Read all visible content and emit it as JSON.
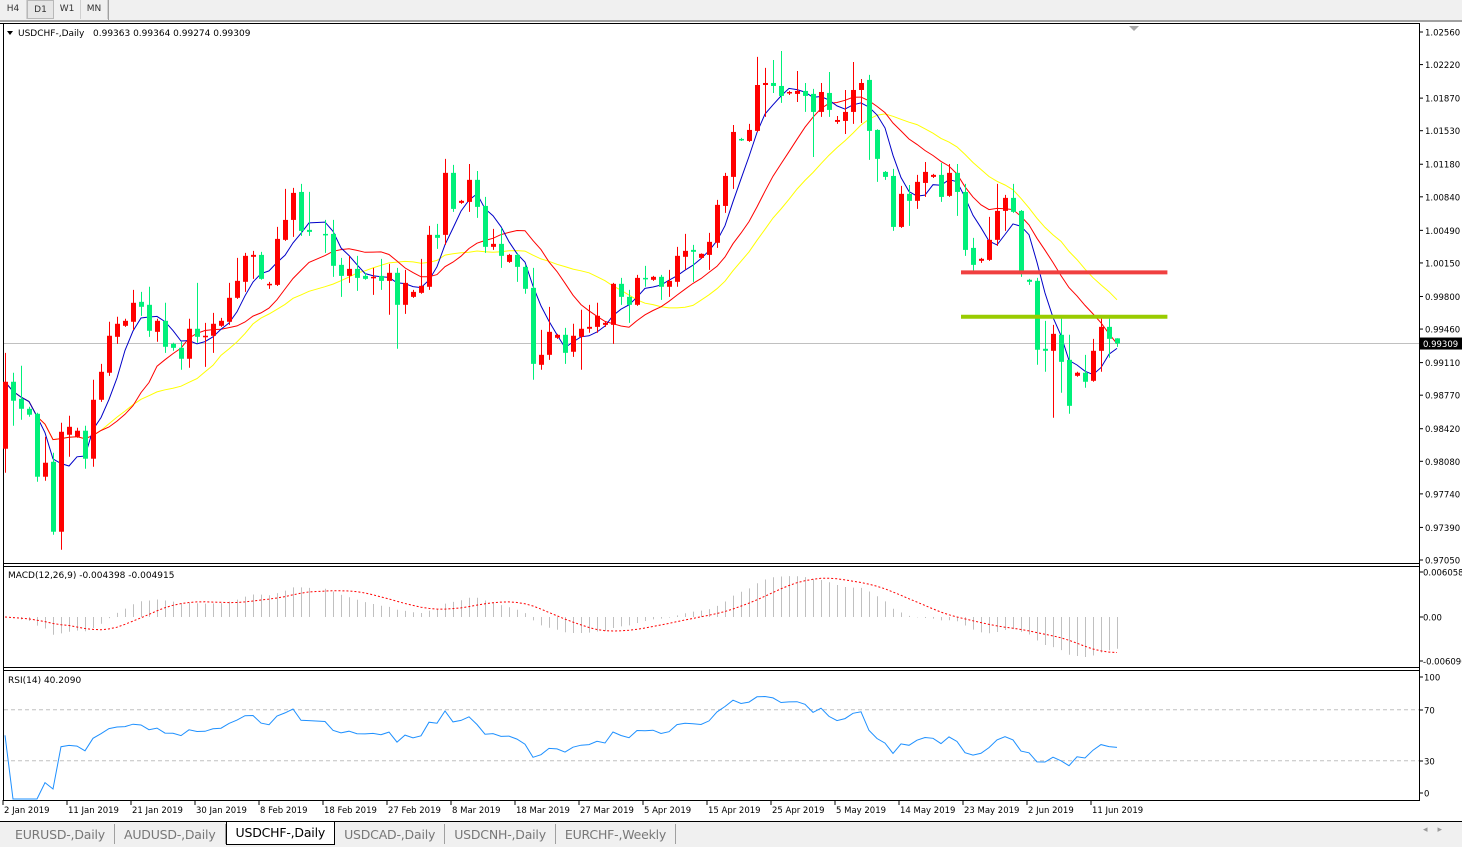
{
  "toolbar": {
    "timeframes": [
      "H4",
      "D1",
      "W1",
      "MN"
    ],
    "active": "D1"
  },
  "header": {
    "symbol": "USDCHF-,Daily",
    "ohlc": "0.99363 0.99364 0.99274 0.99309"
  },
  "price_axis": {
    "labels": [
      "1.02560",
      "1.02220",
      "1.01870",
      "1.01530",
      "1.01180",
      "1.00840",
      "1.00490",
      "1.00150",
      "0.99800",
      "0.99460",
      "0.99110",
      "0.98770",
      "0.98420",
      "0.98080",
      "0.97740",
      "0.97390",
      "0.97050"
    ],
    "current_price": "0.99309"
  },
  "macd": {
    "title": "MACD(12,26,9) -0.004398 -0.004915",
    "axis_labels": [
      "0.006058",
      "0.00",
      "-0.006096"
    ],
    "axis_values": [
      0.006058,
      0,
      -0.006096
    ]
  },
  "rsi": {
    "title": "RSI(14) 40.2090",
    "axis_labels": [
      "100",
      "70",
      "30",
      "0"
    ],
    "levels": [
      70,
      30
    ]
  },
  "date_labels": [
    "2 Jan 2019",
    "11 Jan 2019",
    "21 Jan 2019",
    "30 Jan 2019",
    "8 Feb 2019",
    "18 Feb 2019",
    "27 Feb 2019",
    "8 Mar 2019",
    "18 Mar 2019",
    "27 Mar 2019",
    "5 Apr 2019",
    "15 Apr 2019",
    "25 Apr 2019",
    "5 May 2019",
    "14 May 2019",
    "23 May 2019",
    "2 Jun 2019",
    "11 Jun 2019"
  ],
  "tabs": [
    {
      "label": "EURUSD-,Daily",
      "active": false
    },
    {
      "label": "AUDUSD-,Daily",
      "active": false
    },
    {
      "label": "USDCHF-,Daily",
      "active": true
    },
    {
      "label": "USDCAD-,Daily",
      "active": false
    },
    {
      "label": "USDCNH-,Daily",
      "active": false
    },
    {
      "label": "EURCHF-,Weekly",
      "active": false
    }
  ],
  "tab_scroll": {
    "left": "◂",
    "right": "▸"
  },
  "chart_data": {
    "type": "candlestick",
    "symbol": "USDCHF-",
    "timeframe": "Daily",
    "ylim": [
      0.9705,
      1.0256
    ],
    "grid": false,
    "colors": {
      "up": "#ff0000",
      "down": "#00f07a",
      "ma_fast": "#0000c8",
      "ma_mid": "#ff0000",
      "ma_slow": "#ffff00",
      "macd_hist": "#c0c0c0",
      "macd_signal": "#ff0000",
      "rsi": "#1e90ff",
      "bid_line": "#c0c0c0"
    },
    "horizontal_lines": [
      {
        "price": 1.00052,
        "color": "#f04040"
      },
      {
        "price": 0.99588,
        "color": "#99cc00"
      }
    ],
    "ohlc": [
      [
        0.98211,
        0.99212,
        0.97961,
        0.9891
      ],
      [
        0.9891,
        0.99004,
        0.98451,
        0.98712
      ],
      [
        0.98732,
        0.99077,
        0.98513,
        0.98628
      ],
      [
        0.98628,
        0.98649,
        0.98545,
        0.98566
      ],
      [
        0.98576,
        0.98586,
        0.97867,
        0.97919
      ],
      [
        0.97919,
        0.98336,
        0.97877,
        0.98065
      ],
      [
        0.98075,
        0.98169,
        0.97314,
        0.97345
      ],
      [
        0.97345,
        0.98482,
        0.97157,
        0.98388
      ],
      [
        0.98357,
        0.98555,
        0.98127,
        0.9844
      ],
      [
        0.98336,
        0.9843,
        0.98326,
        0.98399
      ],
      [
        0.98399,
        0.98451,
        0.98002,
        0.98107
      ],
      [
        0.98107,
        0.98931,
        0.98023,
        0.98722
      ],
      [
        0.98722,
        0.99097,
        0.987,
        0.99014
      ],
      [
        0.99004,
        0.99536,
        0.98972,
        0.9939
      ],
      [
        0.99379,
        0.99588,
        0.99306,
        0.99515
      ],
      [
        0.99494,
        0.99567,
        0.99483,
        0.99546
      ],
      [
        0.99536,
        0.99869,
        0.99452,
        0.99734
      ],
      [
        0.99744,
        0.99848,
        0.99598,
        0.99692
      ],
      [
        0.99713,
        0.99901,
        0.99379,
        0.99442
      ],
      [
        0.99431,
        0.99567,
        0.99327,
        0.99546
      ],
      [
        0.99546,
        0.99734,
        0.99212,
        0.99275
      ],
      [
        0.99306,
        0.99317,
        0.99233,
        0.99264
      ],
      [
        0.99264,
        0.99327,
        0.99035,
        0.9915
      ],
      [
        0.9915,
        0.99567,
        0.99056,
        0.99463
      ],
      [
        0.99463,
        0.99942,
        0.99317,
        0.99379
      ],
      [
        0.99379,
        0.99525,
        0.99066,
        0.9939
      ],
      [
        0.9939,
        0.99629,
        0.99212,
        0.99515
      ],
      [
        0.99494,
        0.99577,
        0.99483,
        0.99546
      ],
      [
        0.99536,
        0.99942,
        0.99504,
        0.99786
      ],
      [
        0.99786,
        1.00203,
        0.99775,
        0.99963
      ],
      [
        0.99953,
        1.00255,
        0.99848,
        1.00224
      ],
      [
        1.00214,
        1.00276,
        0.99984,
        1.00234
      ],
      [
        1.00234,
        1.00266,
        0.99974,
        0.99984
      ],
      [
        0.99921,
        0.99953,
        0.9988,
        0.99932
      ],
      [
        0.99921,
        1.00526,
        0.9991,
        1.00401
      ],
      [
        1.00391,
        1.00923,
        1.0038,
        1.00599
      ],
      [
        1.00599,
        1.00933,
        1.00422,
        1.00881
      ],
      [
        1.00891,
        1.00975,
        1.00433,
        1.00485
      ],
      [
        1.00495,
        1.00891,
        1.00433,
        1.00474
      ],
      null,
      [
        1.00453,
        1.00599,
        1.00255,
        1.00443
      ],
      [
        1.00453,
        1.00599,
        1.00005,
        1.0012
      ],
      [
        1.0013,
        1.00203,
        0.99796,
        1.00015
      ],
      [
        1.00015,
        1.00224,
        0.99942,
        1.00088
      ],
      [
        1.00088,
        1.00224,
        0.99859,
        0.99994
      ],
      [
        1.00015,
        1.00047,
        0.99974,
        0.99984
      ],
      [
        0.99994,
        1.00099,
        0.99817,
        1.00005
      ],
      [
        1.00015,
        1.00193,
        0.99869,
        0.99963
      ],
      [
        0.99963,
        1.0014,
        0.99609,
        1.00047
      ],
      [
        1.00047,
        1.00099,
        0.99254,
        0.99713
      ],
      [
        0.99713,
        1.00078,
        0.99619,
        0.99942
      ],
      [
        0.99796,
        0.99869,
        0.99786,
        0.99848
      ],
      [
        0.99838,
        1.00193,
        0.99828,
        0.99911
      ],
      [
        0.99901,
        1.00537,
        0.99869,
        1.00443
      ],
      [
        1.00443,
        1.00558,
        1.00297,
        1.00412
      ],
      [
        1.00443,
        1.01236,
        1.00339,
        1.0109
      ],
      [
        1.0109,
        1.01173,
        1.00683,
        1.00714
      ],
      [
        1.00777,
        1.00808,
        1.00766,
        1.00798
      ],
      [
        1.00787,
        1.01183,
        1.00683,
        1.01017
      ],
      [
        1.01017,
        1.0111,
        1.0062,
        1.00735
      ],
      [
        1.00745,
        1.00839,
        1.00255,
        1.00318
      ],
      [
        1.00318,
        1.00506,
        1.00286,
        1.00349
      ],
      [
        1.00349,
        1.00516,
        1.00099,
        1.00224
      ],
      [
        1.00161,
        1.00245,
        1.00151,
        1.00234
      ],
      [
        1.00234,
        1.00255,
        0.99953,
        1.00109
      ],
      [
        1.00109,
        1.0013,
        0.99828,
        0.9988
      ],
      [
        0.9989,
        1.00099,
        0.98931,
        0.99097
      ],
      [
        0.99087,
        0.99452,
        0.99035,
        0.99191
      ],
      [
        0.99191,
        0.99692,
        0.99139,
        0.99431
      ],
      [
        0.99369,
        0.9941,
        0.99358,
        0.994
      ],
      [
        0.994,
        0.99473,
        0.99097,
        0.99212
      ],
      [
        0.99223,
        0.99515,
        0.9917,
        0.9939
      ],
      [
        0.99379,
        0.99661,
        0.99035,
        0.99463
      ],
      [
        0.99463,
        0.99713,
        0.99421,
        0.99483
      ],
      [
        0.99483,
        0.99734,
        0.99421,
        0.99598
      ],
      [
        0.99504,
        0.99536,
        0.99483,
        0.99525
      ],
      [
        0.99504,
        0.99942,
        0.99306,
        0.99932
      ],
      [
        0.99932,
        0.99994,
        0.99713,
        0.99796
      ],
      [
        0.99796,
        0.99869,
        0.99525,
        0.99713
      ],
      [
        0.99713,
        1.00026,
        0.99702,
        0.99994
      ],
      [
        0.99994,
        1.0012,
        0.99901,
        0.99984
      ],
      [
        0.99974,
        1.00015,
        0.99963,
        1.00005
      ],
      [
        1.00005,
        1.00026,
        0.99765,
        0.99901
      ],
      [
        0.99901,
        1.00078,
        0.99796,
        0.99963
      ],
      [
        0.99953,
        1.00318,
        0.99901,
        1.00224
      ],
      [
        1.00214,
        1.00453,
        1.00078,
        1.00276
      ],
      [
        1.00286,
        1.00339,
        0.99953,
        1.00266
      ],
      [
        1.00203,
        1.0025,
        1.00193,
        1.00245
      ],
      [
        1.00234,
        1.00464,
        1.00078,
        1.0037
      ],
      [
        1.0036,
        1.00808,
        1.00307,
        1.00756
      ],
      [
        1.00745,
        1.0109,
        1.00672,
        1.01058
      ],
      [
        1.01048,
        1.0159,
        1.00923,
        1.01517
      ],
      [
        1.01444,
        1.01455,
        1.01423,
        1.01434
      ],
      [
        1.01423,
        1.01601,
        1.01413,
        1.01538
      ],
      [
        1.01528,
        1.023,
        1.01517,
        1.02007
      ],
      [
        1.02007,
        1.02185,
        1.01674,
        1.02028
      ],
      [
        1.02028,
        1.02268,
        1.01924,
        1.01997
      ],
      [
        1.01997,
        1.02362,
        1.0182,
        1.01893
      ],
      [
        1.01924,
        1.01945,
        1.01903,
        1.01934
      ],
      [
        1.01914,
        1.02153,
        1.0183,
        1.01945
      ],
      [
        1.01945,
        1.02028,
        1.01726,
        1.01893
      ],
      [
        1.01914,
        1.01966,
        1.01256,
        1.01726
      ],
      [
        1.01726,
        1.02028,
        1.01674,
        1.01934
      ],
      [
        1.01924,
        1.02143,
        1.01674,
        1.01747
      ],
      [
        1.01622,
        1.01684,
        1.01601,
        1.01642
      ],
      [
        1.01632,
        1.01955,
        1.01496,
        1.01726
      ],
      [
        1.01726,
        1.02247,
        1.01601,
        1.01955
      ],
      [
        1.01955,
        1.0207,
        1.01611,
        1.02028
      ],
      [
        1.0206,
        1.02112,
        1.01225,
        1.01528
      ],
      [
        1.01538,
        1.01545,
        1.00996,
        1.01236
      ],
      [
        1.011,
        1.0111,
        1.01017,
        1.01048
      ],
      [
        1.01058,
        1.01131,
        1.00485,
        1.00526
      ],
      [
        1.00526,
        1.00954,
        1.00516,
        1.00871
      ],
      [
        1.00871,
        1.00964,
        1.00537,
        1.00798
      ],
      [
        1.00798,
        1.01069,
        1.00714,
        1.00996
      ],
      [
        1.00985,
        1.01204,
        1.00839,
        1.011
      ],
      [
        1.01048,
        1.01079,
        1.01037,
        1.01069
      ],
      [
        1.01069,
        1.01194,
        1.00787,
        1.00839
      ],
      [
        1.0085,
        1.01183,
        1.00839,
        1.0109
      ],
      [
        1.0109,
        1.01183,
        1.00641,
        1.00891
      ],
      [
        1.00891,
        1.00975,
        1.00224,
        1.00286
      ],
      [
        1.00307,
        1.00412,
        1.00067,
        1.0013
      ],
      [
        1.00172,
        1.00203,
        1.00151,
        1.00193
      ],
      [
        1.00182,
        1.00631,
        1.00172,
        1.00391
      ],
      [
        1.00391,
        1.00975,
        1.00328,
        1.00693
      ],
      [
        1.00693,
        1.0086,
        1.00485,
        1.00829
      ],
      [
        1.00829,
        1.00975,
        1.00672,
        1.00683
      ],
      [
        1.00693,
        1.00703,
        1.00005,
        1.00067
      ],
      [
        0.99974,
        0.99984,
        0.99921,
        0.99953
      ],
      [
        0.99963,
        0.99994,
        0.99087,
        0.99244
      ],
      [
        0.99254,
        0.99546,
        0.99014,
        0.99233
      ],
      [
        0.99233,
        0.99504,
        0.98534,
        0.9941
      ],
      [
        0.994,
        0.99577,
        0.98795,
        0.99118
      ],
      [
        0.99139,
        0.994,
        0.98576,
        0.98659
      ],
      [
        0.98972,
        0.99014,
        0.98962,
        0.99004
      ],
      [
        0.99004,
        0.99191,
        0.98847,
        0.9891
      ],
      [
        0.9892,
        0.99358,
        0.9891,
        0.99233
      ],
      [
        0.99233,
        0.99577,
        0.99014,
        0.99483
      ],
      [
        0.99483,
        0.99577,
        0.9916,
        0.99358
      ],
      [
        0.99363,
        0.99364,
        0.99274,
        0.99309
      ]
    ]
  }
}
